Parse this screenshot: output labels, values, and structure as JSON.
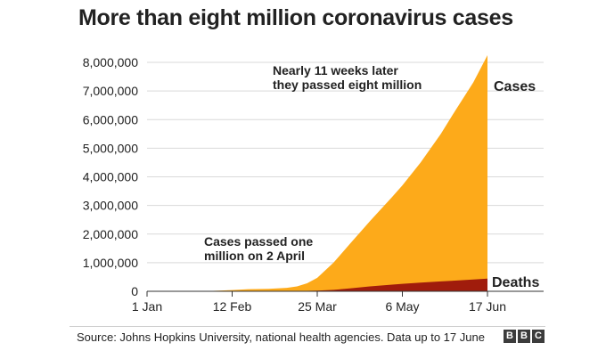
{
  "chart_data": {
    "type": "area",
    "title": "More than eight million coronavirus cases",
    "x_tick_labels": [
      "1 Jan",
      "12 Feb",
      "25 Mar",
      "6 May",
      "17 Jun"
    ],
    "x_ticks_day_of_year": [
      1,
      43,
      85,
      127,
      169
    ],
    "ylim": [
      0,
      8000000
    ],
    "y_tick_values": [
      0,
      1000000,
      2000000,
      3000000,
      4000000,
      5000000,
      6000000,
      7000000,
      8000000
    ],
    "y_tick_labels": [
      "0",
      "1,000,000",
      "2,000,000",
      "3,000,000",
      "4,000,000",
      "5,000,000",
      "6,000,000",
      "7,000,000",
      "8,000,000"
    ],
    "grid": true,
    "series": [
      {
        "name": "Cases",
        "color": "#fdaa1a",
        "x": [
          "2020-01-22",
          "2020-02-01",
          "2020-02-12",
          "2020-02-20",
          "2020-03-01",
          "2020-03-10",
          "2020-03-15",
          "2020-03-20",
          "2020-03-25",
          "2020-04-02",
          "2020-04-10",
          "2020-04-20",
          "2020-05-01",
          "2020-05-06",
          "2020-05-15",
          "2020-05-25",
          "2020-06-01",
          "2020-06-10",
          "2020-06-17"
        ],
        "values": [
          600,
          12000,
          45000,
          76000,
          88000,
          120000,
          170000,
          280000,
          470000,
          1000000,
          1650000,
          2450000,
          3300000,
          3700000,
          4500000,
          5500000,
          6300000,
          7300000,
          8250000
        ]
      },
      {
        "name": "Deaths",
        "color": "#a01c0c",
        "x": [
          "2020-01-22",
          "2020-03-01",
          "2020-03-15",
          "2020-03-25",
          "2020-04-02",
          "2020-04-10",
          "2020-04-20",
          "2020-05-01",
          "2020-05-06",
          "2020-05-15",
          "2020-05-25",
          "2020-06-01",
          "2020-06-10",
          "2020-06-17"
        ],
        "values": [
          17,
          3000,
          6500,
          22000,
          50000,
          100000,
          170000,
          235000,
          260000,
          305000,
          345000,
          375000,
          410000,
          445000
        ]
      }
    ],
    "annotations": [
      {
        "lines": [
          "Nearly 11 weeks later",
          "they passed eight million"
        ]
      },
      {
        "lines": [
          "Cases passed one",
          "million on 2 April"
        ]
      }
    ]
  },
  "footer": {
    "source": "Source: Johns Hopkins University, national health agencies. Data up to 17 June",
    "logo_letters": [
      "B",
      "B",
      "C"
    ]
  }
}
